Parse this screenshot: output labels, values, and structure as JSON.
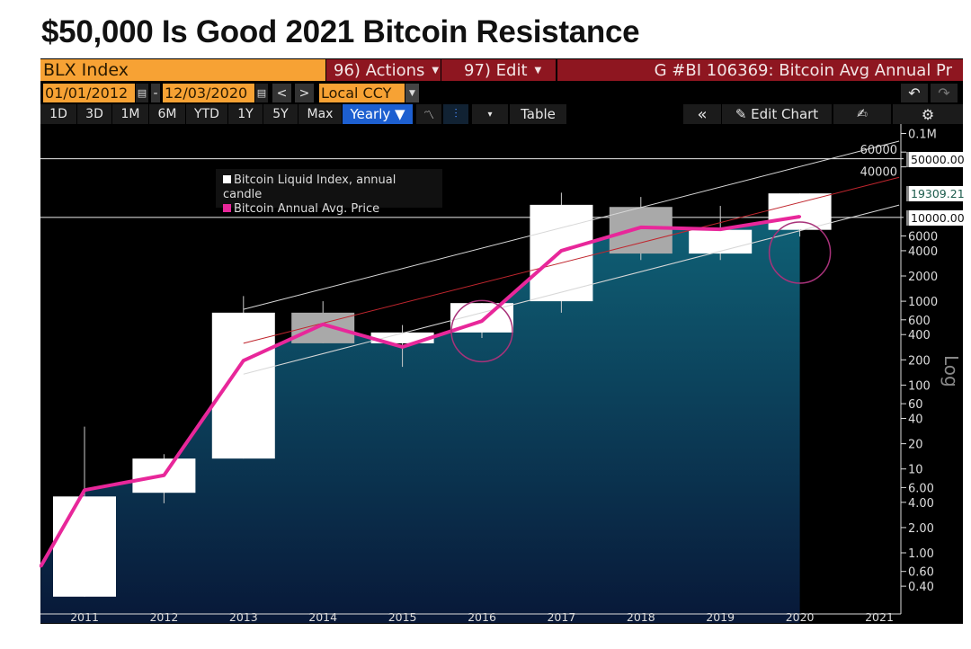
{
  "title": "$50,000 Is Good 2021 Bitcoin Resistance",
  "toolbar": {
    "ticker": "BLX Index",
    "actions": "96) Actions",
    "edit": "97) Edit",
    "chart_title": "G #BI 106369: Bitcoin Avg Annual Pr",
    "start_date": "01/01/2012",
    "end_date": "12/03/2020",
    "dash": "-",
    "prev": "<",
    "next": ">",
    "currency": "Local CCY",
    "undo": "↶",
    "redo": "↷",
    "periods": [
      "1D",
      "3D",
      "1M",
      "6M",
      "YTD",
      "1Y",
      "5Y",
      "Max"
    ],
    "frequency": "Yearly ▼",
    "table": "Table",
    "collapse": "«",
    "edit_chart": "✎ Edit Chart",
    "caret": "▾"
  },
  "colors": {
    "candle_up": "#ffffff",
    "candle_down": "#a9a9a9",
    "avg_line": "#e8279a",
    "channel": "#d8d8d8",
    "channel_mid": "#c0262e",
    "circle": "#a8327a",
    "area_top": "#0f6176",
    "area_bottom": "#081838"
  },
  "chart_data": {
    "type": "candlestick+line",
    "title": "Bitcoin Avg Annual Price",
    "yscale": "log",
    "ylabel": "Log",
    "yticks": [
      "0.1M",
      "60000",
      "40000",
      "6000",
      "4000",
      "2000",
      "1000",
      "600",
      "400",
      "200",
      "100",
      "60",
      "40",
      "20",
      "10",
      "6.00",
      "4.00",
      "2.00",
      "1.00",
      "0.60",
      "0.40"
    ],
    "ytick_values": [
      100000,
      60000,
      40000,
      6000,
      4000,
      2000,
      1000,
      600,
      400,
      200,
      100,
      60,
      40,
      20,
      10,
      6,
      4,
      2,
      1,
      0.6,
      0.4
    ],
    "xticks": [
      "2011",
      "2012",
      "2013",
      "2014",
      "2015",
      "2016",
      "2017",
      "2018",
      "2019",
      "2020",
      "2021"
    ],
    "xrange": [
      2010.45,
      2021.25
    ],
    "legend": [
      "Bitcoin Liquid Index, annual candle",
      "Bitcoin Annual Avg. Price"
    ],
    "candles": [
      {
        "year": 2011,
        "open": 0.3,
        "high": 32,
        "low": 0.3,
        "close": 4.7
      },
      {
        "year": 2012,
        "open": 5.2,
        "high": 15,
        "low": 3.9,
        "close": 13.3
      },
      {
        "year": 2013,
        "open": 13.3,
        "high": 1150,
        "low": 13.3,
        "close": 730
      },
      {
        "year": 2014,
        "open": 730,
        "high": 1000,
        "low": 315,
        "close": 315
      },
      {
        "year": 2015,
        "open": 315,
        "high": 520,
        "low": 165,
        "close": 424
      },
      {
        "year": 2016,
        "open": 424,
        "high": 950,
        "low": 365,
        "close": 950
      },
      {
        "year": 2017,
        "open": 1000,
        "high": 19700,
        "low": 730,
        "close": 14100
      },
      {
        "year": 2018,
        "open": 13300,
        "high": 17500,
        "low": 3100,
        "close": 3700
      },
      {
        "year": 2019,
        "open": 3700,
        "high": 13700,
        "low": 3100,
        "close": 7100
      },
      {
        "year": 2020,
        "open": 7100,
        "high": 19309.21,
        "low": 5900,
        "close": 19309.21
      }
    ],
    "avg_price": {
      "x": [
        2010.45,
        2011,
        2012,
        2013,
        2014,
        2015,
        2016,
        2017,
        2018,
        2019,
        2020
      ],
      "y": [
        0.69,
        5.6,
        8.4,
        196,
        530,
        285,
        580,
        4000,
        7600,
        7200,
        10200
      ]
    },
    "hlines": [
      {
        "value": 50000,
        "label": "50000.00"
      },
      {
        "value": 10000,
        "label": "10000.00"
      }
    ],
    "last_value_label": "19309.21",
    "trend_channel": [
      {
        "name": "upper",
        "from": [
          2013,
          800
        ],
        "to": [
          2021.25,
          81000
        ]
      },
      {
        "name": "middle",
        "from": [
          2013,
          315
        ],
        "to": [
          2021.25,
          30000
        ]
      },
      {
        "name": "lower",
        "from": [
          2013,
          135
        ],
        "to": [
          2021.25,
          14000
        ]
      }
    ],
    "circles": [
      {
        "year": 2016,
        "value": 440
      },
      {
        "year": 2020,
        "value": 3800
      }
    ]
  }
}
